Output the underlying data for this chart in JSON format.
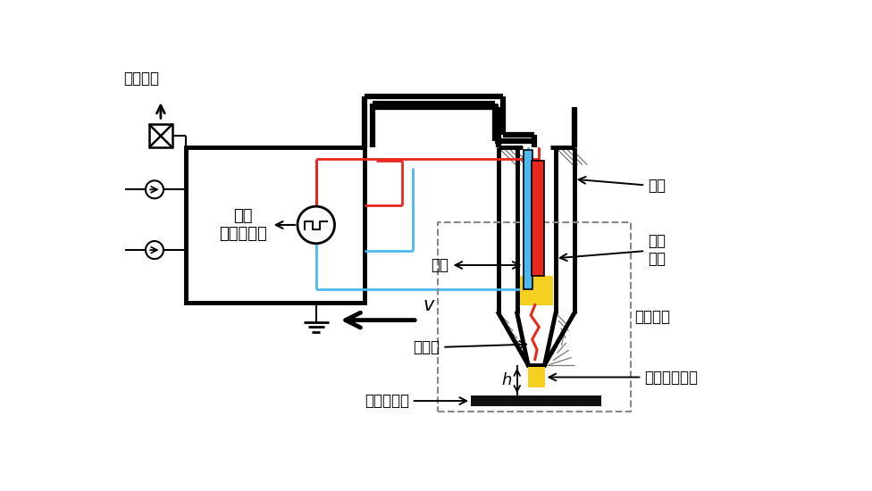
{
  "bg_color": "#ffffff",
  "lc": "#000000",
  "rc": "#e8281e",
  "bc": "#4cb8f0",
  "yc": "#f5d020",
  "lw_thick": 3.5,
  "lw_med": 2.0,
  "lw_thin": 1.5,
  "lw_cable": 4.5,
  "fs": 12,
  "fs_sm": 11,
  "gas_in": "通入气体",
  "gen_label": "高压\n射频发生器",
  "cathode_label": "负极",
  "center_label": "中心\n电极",
  "nozzle_label": "喷头装置",
  "gas_tube_label": "气管",
  "arc_label": "电流弧",
  "plasma_label": "等离子体射流",
  "material_label": "被处理材料",
  "h_label": "h",
  "v_label": "v"
}
